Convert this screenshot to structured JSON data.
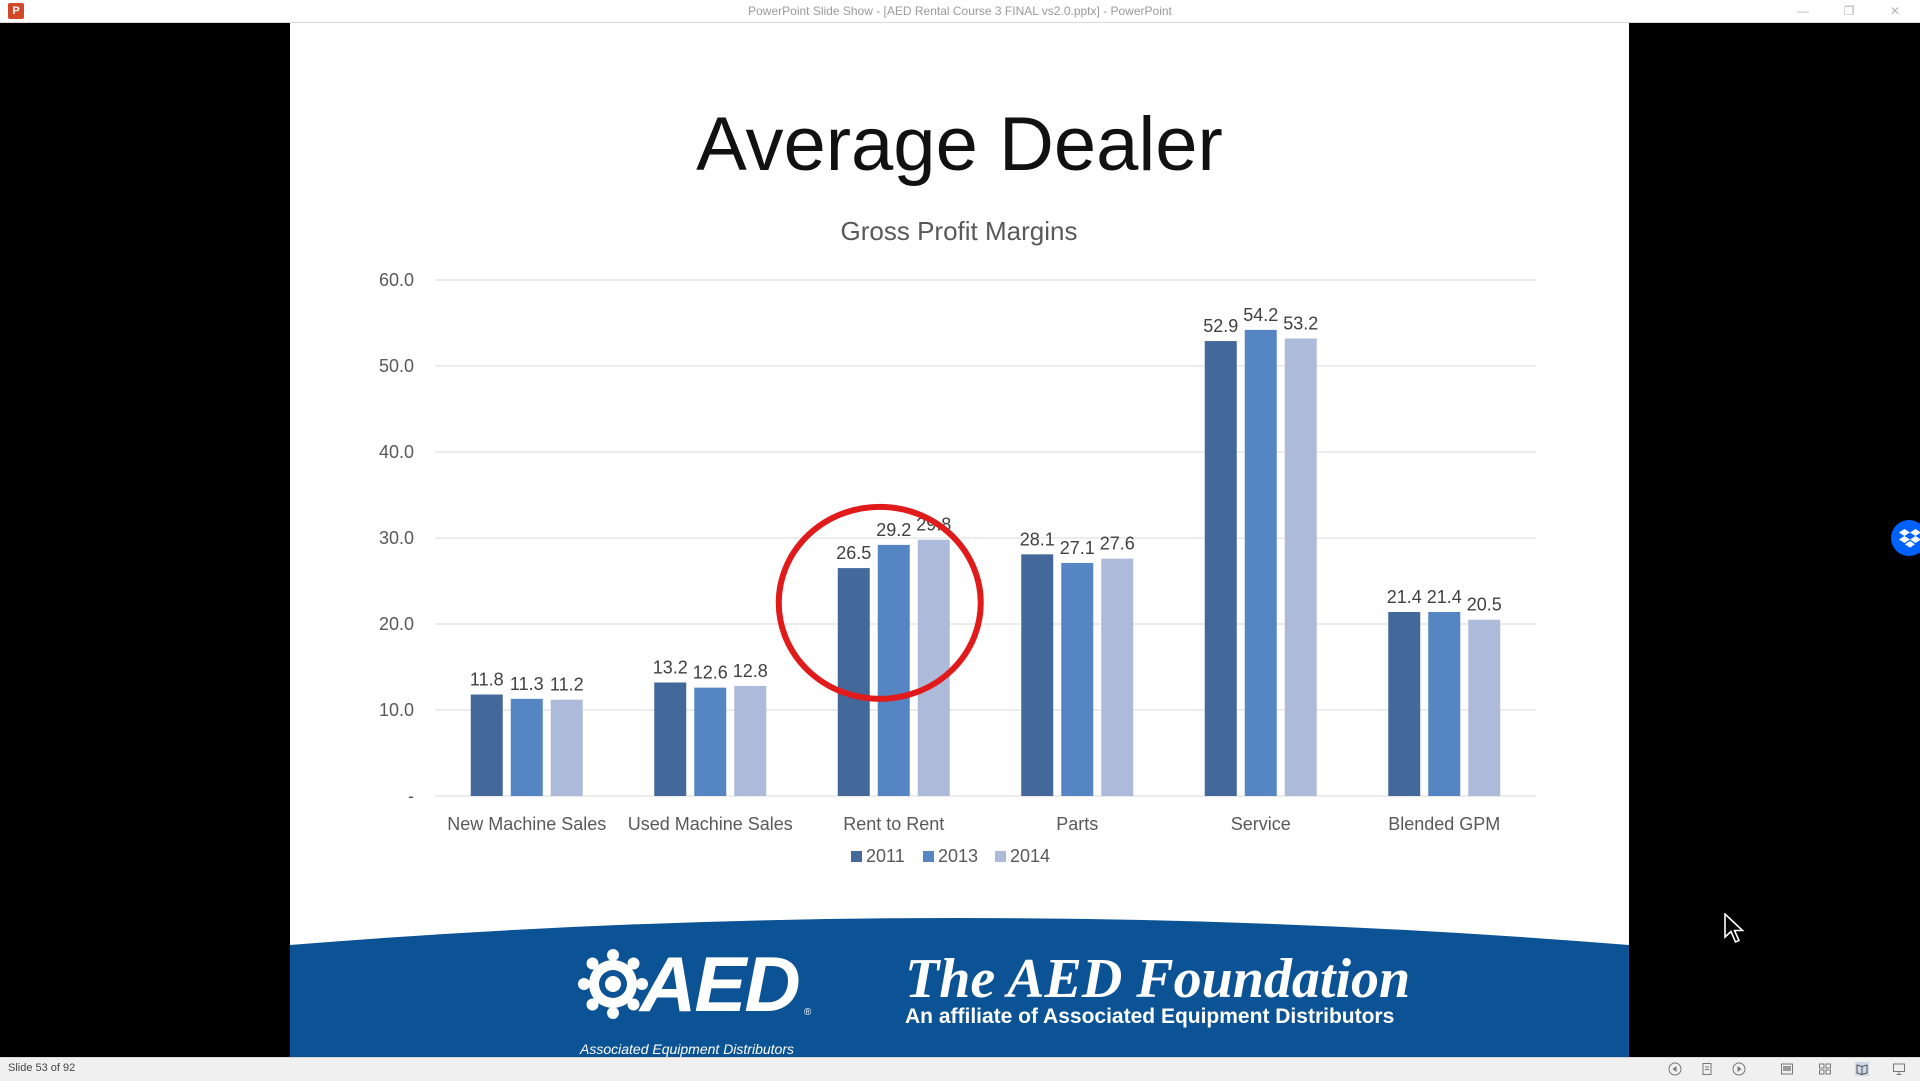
{
  "window": {
    "title": "PowerPoint Slide Show - [AED Rental Course 3 FINAL vs2.0.pptx] - PowerPoint",
    "app_icon_letter": "P",
    "minimize": "—",
    "restore": "❐",
    "close": "✕"
  },
  "slide": {
    "title": "Average Dealer"
  },
  "chart_data": {
    "type": "bar",
    "title": "Gross Profit Margins",
    "categories": [
      "New Machine Sales",
      "Used Machine Sales",
      "Rent to Rent",
      "Parts",
      "Service",
      "Blended GPM"
    ],
    "series": [
      {
        "name": "2011",
        "color": "#43689a",
        "values": [
          11.8,
          13.2,
          26.5,
          28.1,
          52.9,
          21.4
        ]
      },
      {
        "name": "2013",
        "color": "#5585c2",
        "values": [
          11.3,
          12.6,
          29.2,
          27.1,
          54.2,
          21.4
        ]
      },
      {
        "name": "2014",
        "color": "#adbada",
        "values": [
          11.2,
          12.8,
          29.8,
          27.6,
          53.2,
          20.5
        ]
      }
    ],
    "ylim": [
      0,
      60
    ],
    "yticks": [
      "-",
      "10.0",
      "20.0",
      "30.0",
      "40.0",
      "50.0",
      "60.0"
    ],
    "grid": true,
    "legend": "bottom",
    "highlight": "Rent to Rent",
    "highlight_color": "#e11b1b"
  },
  "banner": {
    "color": "#0b5394",
    "aed_wordmark": "AED",
    "aed_registered": "®",
    "aed_tagline": "Associated Equipment Distributors",
    "foundation_name": "The AED Foundation",
    "foundation_affiliate": "An affiliate of Associated Equipment Distributors"
  },
  "status": {
    "slide_counter": "Slide 53 of 92"
  }
}
